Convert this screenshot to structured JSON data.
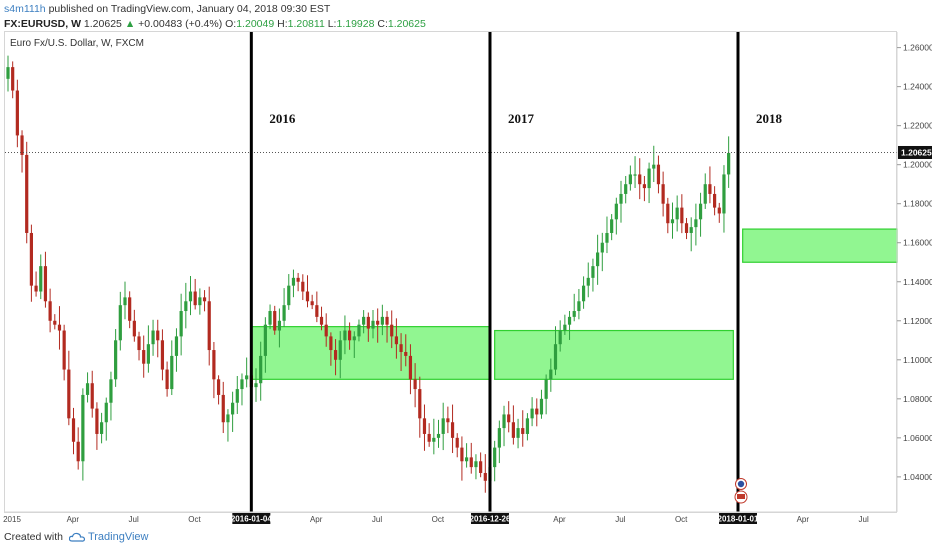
{
  "header": {
    "author": "s4m111h",
    "published": "published on TradingView.com, January 04, 2018 09:30 EST",
    "symbol": "FX:EURUSD, W",
    "last": "1.20625",
    "change": "+0.00483 (+0.4%)",
    "open_label": "O:",
    "open": "1.20049",
    "high_label": "H:",
    "high": "1.20811",
    "low_label": "L:",
    "low": "1.19928",
    "close_label": "C:",
    "close": "1.20625"
  },
  "chart_title": "Euro Fx/U.S. Dollar, W, FXCM",
  "footer": {
    "created_with": "Created with",
    "brand": "TradingView"
  },
  "chart_data": {
    "type": "candlestick",
    "y_axis": {
      "ylim": [
        1.022,
        1.268
      ],
      "ticks": [
        "1.26000",
        "1.24000",
        "1.22000",
        "1.20000",
        "1.18000",
        "1.16000",
        "1.14000",
        "1.12000",
        "1.10000",
        "1.08000",
        "1.06000",
        "1.04000"
      ],
      "current_price": "1.20625"
    },
    "x_axis": {
      "ticks": [
        {
          "label": "2015",
          "week": 0,
          "highlight": false
        },
        {
          "label": "Apr",
          "week": 13,
          "highlight": false
        },
        {
          "label": "Jul",
          "week": 26,
          "highlight": false
        },
        {
          "label": "Oct",
          "week": 39,
          "highlight": false
        },
        {
          "label": "2016-01-04",
          "week": 52,
          "highlight": true
        },
        {
          "label": "Apr",
          "week": 65,
          "highlight": false
        },
        {
          "label": "Jul",
          "week": 78,
          "highlight": false
        },
        {
          "label": "Oct",
          "week": 91,
          "highlight": false
        },
        {
          "label": "2016-12-26",
          "week": 103,
          "highlight": true
        },
        {
          "label": "Apr",
          "week": 117,
          "highlight": false
        },
        {
          "label": "Jul",
          "week": 130,
          "highlight": false
        },
        {
          "label": "Oct",
          "week": 143,
          "highlight": false
        },
        {
          "label": "2018-01-01",
          "week": 156,
          "highlight": true
        },
        {
          "label": "Apr",
          "week": 169,
          "highlight": false
        },
        {
          "label": "Jul",
          "week": 182,
          "highlight": false
        }
      ]
    },
    "year_dividers": [
      {
        "week": 52,
        "label": "2016"
      },
      {
        "week": 103,
        "label": "2017"
      },
      {
        "week": 156,
        "label": "2018"
      }
    ],
    "zones": [
      {
        "from_week": 52,
        "to_week": 103,
        "top": 1.117,
        "bottom": 1.09
      },
      {
        "from_week": 104,
        "to_week": 155,
        "top": 1.115,
        "bottom": 1.09
      },
      {
        "from_week": 157,
        "to_week": 190,
        "top": 1.167,
        "bottom": 1.15
      }
    ],
    "colors": {
      "up": "#2f9e3f",
      "down": "#b22a20",
      "zone_fill": "#7ef57e",
      "zone_border": "#2fd02f",
      "divider": "#000000",
      "price_line": "#555555"
    },
    "closes": [
      1.25,
      1.238,
      1.215,
      1.205,
      1.165,
      1.138,
      1.135,
      1.148,
      1.13,
      1.12,
      1.118,
      1.115,
      1.095,
      1.07,
      1.058,
      1.048,
      1.082,
      1.088,
      1.075,
      1.062,
      1.068,
      1.078,
      1.09,
      1.11,
      1.128,
      1.132,
      1.12,
      1.112,
      1.105,
      1.098,
      1.108,
      1.115,
      1.11,
      1.095,
      1.085,
      1.102,
      1.112,
      1.125,
      1.13,
      1.135,
      1.128,
      1.132,
      1.13,
      1.105,
      1.09,
      1.082,
      1.068,
      1.072,
      1.078,
      1.085,
      1.09,
      1.092,
      1.086,
      1.088,
      1.102,
      1.118,
      1.125,
      1.115,
      1.12,
      1.128,
      1.138,
      1.142,
      1.14,
      1.135,
      1.13,
      1.128,
      1.122,
      1.118,
      1.112,
      1.105,
      1.1,
      1.11,
      1.115,
      1.11,
      1.112,
      1.118,
      1.122,
      1.116,
      1.12,
      1.118,
      1.122,
      1.118,
      1.112,
      1.108,
      1.104,
      1.102,
      1.09,
      1.085,
      1.07,
      1.062,
      1.058,
      1.06,
      1.062,
      1.07,
      1.068,
      1.06,
      1.055,
      1.048,
      1.05,
      1.045,
      1.048,
      1.042,
      1.038,
      1.045,
      1.055,
      1.065,
      1.072,
      1.068,
      1.06,
      1.065,
      1.062,
      1.07,
      1.075,
      1.072,
      1.08,
      1.09,
      1.095,
      1.108,
      1.115,
      1.118,
      1.122,
      1.125,
      1.13,
      1.138,
      1.142,
      1.148,
      1.155,
      1.16,
      1.165,
      1.172,
      1.18,
      1.185,
      1.19,
      1.195,
      1.195,
      1.19,
      1.188,
      1.198,
      1.2,
      1.19,
      1.18,
      1.17,
      1.172,
      1.178,
      1.17,
      1.165,
      1.168,
      1.172,
      1.18,
      1.19,
      1.185,
      1.178,
      1.175,
      1.195,
      1.206
    ]
  }
}
